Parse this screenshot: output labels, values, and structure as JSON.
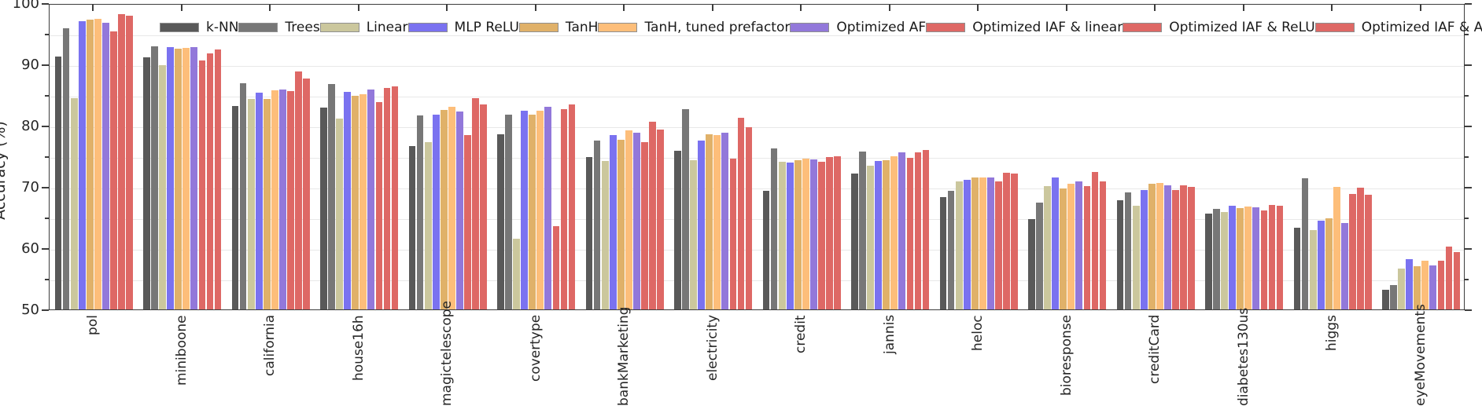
{
  "chart_data": {
    "type": "bar",
    "title": "",
    "ylabel": "Accuracy (%)",
    "ylim": [
      50,
      100
    ],
    "yticks_major": [
      50,
      60,
      70,
      80,
      90,
      100
    ],
    "yticks_minor": [
      55,
      65,
      75,
      85,
      95
    ],
    "grid_step": 5,
    "grid_on": true,
    "legend_position": "top-inside-horizontal",
    "axis_color": "#3d3d3d",
    "grid_color": "#e8e8e8",
    "categories": [
      "pol",
      "miniboone",
      "california",
      "house16h",
      "magictelescope",
      "covertype",
      "bankMarketing",
      "electricity",
      "credit",
      "jannis",
      "heloc",
      "bioresponse",
      "creditCard",
      "diabetes130us",
      "higgs",
      "eyeMovements"
    ],
    "series": [
      {
        "name": "k-NN",
        "color": "#595959",
        "values": [
          91.3,
          91.2,
          83.2,
          82.9,
          76.7,
          78.6,
          74.9,
          75.9,
          69.4,
          72.2,
          68.3,
          64.8,
          67.8,
          65.7,
          63.3,
          53.2
        ]
      },
      {
        "name": "Trees",
        "color": "#777777",
        "values": [
          95.9,
          93.0,
          86.9,
          86.8,
          81.7,
          81.8,
          77.6,
          82.7,
          76.3,
          75.8,
          69.4,
          67.5,
          69.1,
          66.4,
          71.4,
          54.0
        ]
      },
      {
        "name": "Linear",
        "color": "#cbc79d",
        "values": [
          84.5,
          89.9,
          84.3,
          81.1,
          77.3,
          61.6,
          74.2,
          74.3,
          74.1,
          73.4,
          70.9,
          70.1,
          66.9,
          65.9,
          63.0,
          56.7
        ]
      },
      {
        "name": "MLP ReLU",
        "color": "#7a72f0",
        "values": [
          97.1,
          92.8,
          85.4,
          85.5,
          81.8,
          82.5,
          78.5,
          77.6,
          74.0,
          74.2,
          71.1,
          71.5,
          69.5,
          66.9,
          64.5,
          58.2
        ]
      },
      {
        "name": "TanH",
        "color": "#e0b169",
        "values": [
          97.3,
          92.6,
          84.4,
          84.9,
          82.6,
          81.8,
          77.7,
          78.6,
          74.4,
          74.3,
          71.6,
          69.8,
          70.5,
          66.6,
          64.9,
          57.0
        ]
      },
      {
        "name": "TanH, tuned prefactor",
        "color": "#fdbe7a",
        "values": [
          97.5,
          92.7,
          85.8,
          85.1,
          83.1,
          82.5,
          79.2,
          78.5,
          74.6,
          75.0,
          71.6,
          70.5,
          70.7,
          66.8,
          70.0,
          58.0
        ]
      },
      {
        "name": "Optimized AF",
        "color": "#9278da",
        "values": [
          96.8,
          92.8,
          85.9,
          85.9,
          82.3,
          83.1,
          78.9,
          78.8,
          74.5,
          75.6,
          71.5,
          70.9,
          70.2,
          66.7,
          64.1,
          57.2
        ]
      },
      {
        "name": "Optimized IAF & linear",
        "color": "#de6865",
        "values": [
          95.4,
          90.6,
          85.7,
          83.8,
          78.5,
          63.6,
          77.3,
          74.6,
          74.1,
          74.8,
          70.9,
          70.1,
          69.5,
          66.1,
          68.8,
          58.0
        ]
      },
      {
        "name": "Optimized IAF & ReLU",
        "color": "#de6865",
        "values": [
          98.2,
          91.8,
          88.8,
          86.2,
          84.5,
          82.7,
          80.7,
          81.3,
          74.9,
          75.6,
          72.3,
          72.5,
          70.2,
          67.1,
          69.9,
          60.2
        ]
      },
      {
        "name": "Optimized IAF & AF",
        "color": "#de6865",
        "values": [
          98.0,
          92.5,
          87.7,
          86.4,
          83.5,
          83.4,
          79.3,
          79.8,
          75.0,
          76.0,
          72.2,
          70.9,
          70.0,
          66.9,
          68.7,
          59.4
        ]
      }
    ]
  }
}
